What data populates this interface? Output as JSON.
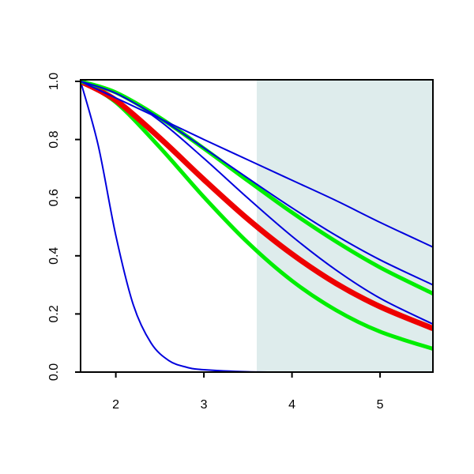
{
  "chart_data": {
    "type": "line",
    "xlim": [
      1.6,
      5.6
    ],
    "ylim": [
      0,
      1
    ],
    "xticks": [
      2,
      3,
      4,
      5
    ],
    "yticks": [
      {
        "value": 0,
        "label": "0.0"
      },
      {
        "value": 0.2,
        "label": "0.2"
      },
      {
        "value": 0.4,
        "label": "0.4"
      },
      {
        "value": 0.6,
        "label": "0.6"
      },
      {
        "value": 0.8,
        "label": "0.8"
      },
      {
        "value": 1,
        "label": "1.0"
      }
    ],
    "shaded_region": {
      "xlim": [
        3.6,
        5.6
      ],
      "color": "#deecec"
    },
    "series": [
      {
        "color": "#0000dd",
        "line_width": 2,
        "x": [
          1.6,
          1.8,
          2,
          2.2,
          2.4,
          2.6,
          2.8,
          3,
          3.5,
          4,
          5,
          5.6
        ],
        "values": [
          1,
          0.78,
          0.47,
          0.23,
          0.1,
          0.04,
          0.017,
          0.008,
          0.001,
          0,
          0,
          0
        ]
      },
      {
        "color": "#00ee00",
        "line_width": 5,
        "x": [
          1.6,
          2,
          2.5,
          3,
          3.5,
          4,
          4.5,
          5,
          5.6
        ],
        "values": [
          1,
          0.928,
          0.773,
          0.602,
          0.445,
          0.314,
          0.213,
          0.139,
          0.08
        ]
      },
      {
        "color": "#ee0000",
        "line_width": 7,
        "x": [
          1.6,
          2,
          2.5,
          3,
          3.5,
          4,
          4.5,
          5,
          5.6
        ],
        "values": [
          1,
          0.935,
          0.805,
          0.662,
          0.526,
          0.406,
          0.305,
          0.225,
          0.15
        ]
      },
      {
        "color": "#0000dd",
        "line_width": 2,
        "x": [
          1.6,
          2,
          2.5,
          3,
          3.5,
          4,
          4.5,
          5,
          5.6
        ],
        "values": [
          1,
          0.963,
          0.864,
          0.735,
          0.598,
          0.467,
          0.351,
          0.254,
          0.165
        ]
      },
      {
        "color": "#00ee00",
        "line_width": 5,
        "x": [
          1.6,
          2,
          2.5,
          3,
          3.5,
          4,
          4.5,
          5,
          5.6
        ],
        "values": [
          1,
          0.962,
          0.875,
          0.769,
          0.658,
          0.549,
          0.449,
          0.36,
          0.27
        ]
      },
      {
        "color": "#0000dd",
        "line_width": 2,
        "x": [
          1.6,
          2,
          2.5,
          3,
          3.5,
          4,
          4.5,
          5,
          5.6
        ],
        "values": [
          1,
          0.959,
          0.873,
          0.771,
          0.667,
          0.565,
          0.47,
          0.386,
          0.3
        ]
      },
      {
        "color": "#0000dd",
        "line_width": 2,
        "x": [
          1.6,
          2,
          2.5,
          3,
          3.5,
          4,
          4.5,
          5,
          5.6
        ],
        "values": [
          1,
          0.943,
          0.872,
          0.8,
          0.73,
          0.66,
          0.59,
          0.515,
          0.43
        ]
      }
    ]
  }
}
